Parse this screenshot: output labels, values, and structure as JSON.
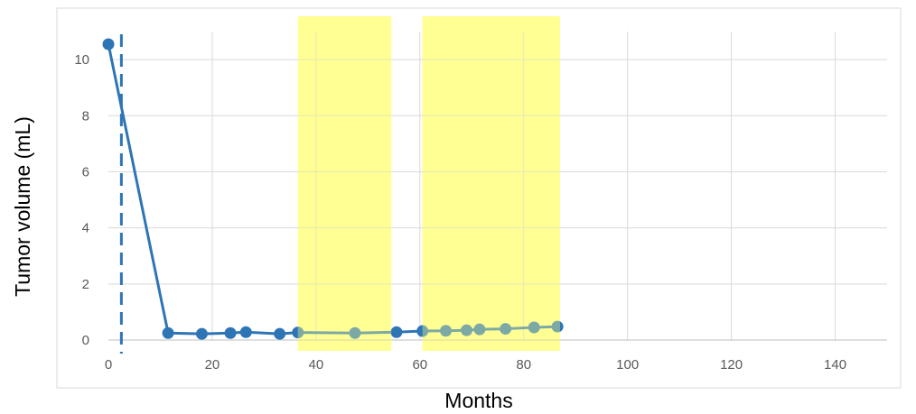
{
  "chart_data": {
    "type": "line",
    "xlabel": "Months",
    "ylabel": "Tumor volume (mL)",
    "xlim": [
      0,
      150
    ],
    "ylim": [
      0,
      11
    ],
    "x_ticks": [
      "0",
      "20",
      "40",
      "60",
      "80",
      "100",
      "120",
      "140"
    ],
    "y_ticks": [
      "0",
      "2",
      "4",
      "6",
      "8",
      "10"
    ],
    "grid": true,
    "legend": "none",
    "shaded_regions": [
      {
        "x_start": 36.5,
        "x_end": 54.5,
        "color": "#ffff88"
      },
      {
        "x_start": 60.5,
        "x_end": 87,
        "color": "#ffff88"
      }
    ],
    "reference_line": {
      "x": 2.5,
      "style": "dashed",
      "color": "#2e75b6"
    },
    "series": [
      {
        "color": "#2e75b6",
        "x": [
          0,
          11.5,
          18,
          23.5,
          26.5,
          33,
          36.5,
          47.5,
          55.5,
          60.5,
          65,
          69,
          71.5,
          76.5,
          82,
          86.5
        ],
        "values": [
          10.55,
          0.25,
          0.22,
          0.25,
          0.28,
          0.22,
          0.27,
          0.25,
          0.28,
          0.32,
          0.33,
          0.35,
          0.38,
          0.4,
          0.45,
          0.48
        ]
      }
    ]
  }
}
